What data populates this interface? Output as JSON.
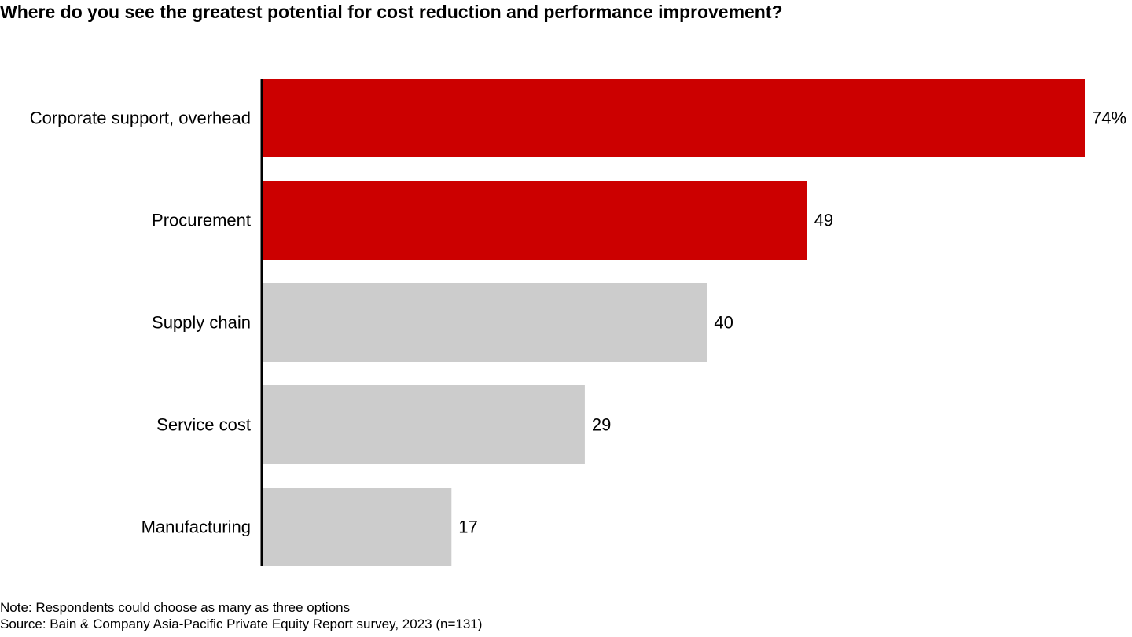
{
  "title": "Where do you see the greatest potential for cost reduction and performance improvement?",
  "notes": {
    "note": "Note: Respondents could choose as many as three options",
    "source": "Source: Bain & Company Asia-Pacific Private Equity Report survey, 2023 (n=131)"
  },
  "chart_data": {
    "type": "bar",
    "orientation": "horizontal",
    "title": "Where do you see the greatest potential for cost reduction and performance improvement?",
    "categories": [
      "Corporate support, overhead",
      "Procurement",
      "Supply chain",
      "Service cost",
      "Manufacturing"
    ],
    "values": [
      74,
      49,
      40,
      29,
      17
    ],
    "value_labels": [
      "74%",
      "49",
      "40",
      "29",
      "17"
    ],
    "unit": "%",
    "bar_colors": [
      "#cc0000",
      "#cc0000",
      "#cccccc",
      "#cccccc",
      "#cccccc"
    ],
    "xlim": [
      0,
      74
    ],
    "grid": false,
    "legend": "none"
  }
}
